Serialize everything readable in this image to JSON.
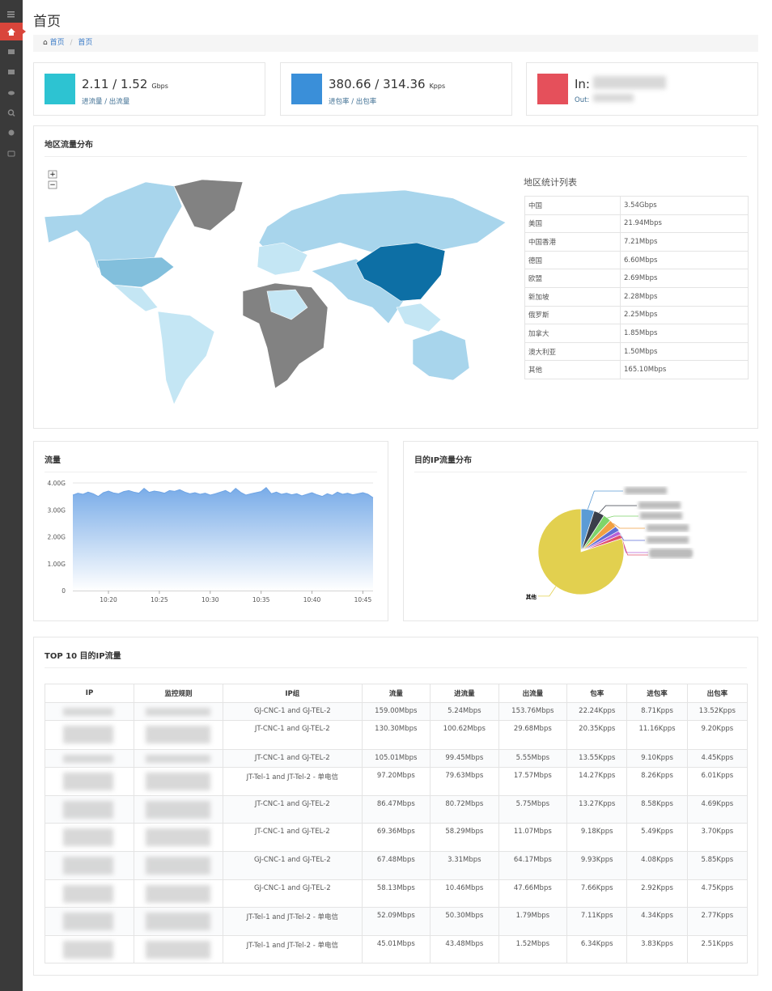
{
  "header": {
    "title": "首页",
    "breadcrumb": [
      "首页",
      "首页"
    ]
  },
  "stats": [
    {
      "value": "2.11 / 1.52",
      "unit": "Gbps",
      "label": "进流量 / 出流量"
    },
    {
      "value": "380.66 / 314.36",
      "unit": "Kpps",
      "label": "进包率 / 出包率"
    },
    {
      "value": "In:",
      "label": "Out:"
    }
  ],
  "region": {
    "title": "地区流量分布",
    "table_title": "地区统计列表",
    "rows": [
      [
        "中国",
        "3.54Gbps"
      ],
      [
        "美国",
        "21.94Mbps"
      ],
      [
        "中国香港",
        "7.21Mbps"
      ],
      [
        "德国",
        "6.60Mbps"
      ],
      [
        "欧盟",
        "2.69Mbps"
      ],
      [
        "新加坡",
        "2.28Mbps"
      ],
      [
        "俄罗斯",
        "2.25Mbps"
      ],
      [
        "加拿大",
        "1.85Mbps"
      ],
      [
        "澳大利亚",
        "1.50Mbps"
      ],
      [
        "其他",
        "165.10Mbps"
      ]
    ]
  },
  "chart_data": [
    {
      "type": "area",
      "title": "流量",
      "color": "#6fa4e4",
      "x": [
        616.5,
        617,
        617.5,
        618,
        618.5,
        619,
        619.5,
        620,
        620.5,
        621,
        621.5,
        622,
        622.5,
        623,
        623.5,
        624,
        624.5,
        625,
        625.5,
        626,
        626.5,
        627,
        627.5,
        628,
        628.5,
        629,
        629.5,
        630,
        630.5,
        631,
        631.5,
        632,
        632.5,
        633,
        633.5,
        634,
        634.5,
        635,
        635.5,
        636,
        636.5,
        637,
        637.5,
        638,
        638.5,
        639,
        639.5,
        640,
        640.5,
        641,
        641.5,
        642,
        642.5,
        643,
        643.5,
        644,
        644.5,
        645,
        645.5,
        646
      ],
      "values": [
        3.55,
        3.62,
        3.58,
        3.66,
        3.6,
        3.5,
        3.64,
        3.7,
        3.63,
        3.6,
        3.68,
        3.72,
        3.66,
        3.62,
        3.8,
        3.65,
        3.7,
        3.67,
        3.62,
        3.72,
        3.69,
        3.75,
        3.66,
        3.6,
        3.64,
        3.58,
        3.62,
        3.55,
        3.6,
        3.66,
        3.72,
        3.62,
        3.8,
        3.65,
        3.55,
        3.6,
        3.64,
        3.68,
        3.83,
        3.6,
        3.66,
        3.58,
        3.62,
        3.56,
        3.6,
        3.52,
        3.58,
        3.64,
        3.56,
        3.5,
        3.6,
        3.54,
        3.66,
        3.58,
        3.62,
        3.56,
        3.6,
        3.64,
        3.58,
        3.45
      ],
      "xlim": [
        616.5,
        646
      ],
      "xticks": [
        {
          "value": 620,
          "label": "10:20"
        },
        {
          "value": 625,
          "label": "10:25"
        },
        {
          "value": 630,
          "label": "10:30"
        },
        {
          "value": 635,
          "label": "10:35"
        },
        {
          "value": 640,
          "label": "10:40"
        },
        {
          "value": 645,
          "label": "10:45"
        }
      ],
      "ylim": [
        0,
        4.1
      ],
      "yticks": [
        0,
        {
          "value": 1,
          "label": "1.00G"
        },
        {
          "value": 2,
          "label": "2.00G"
        },
        {
          "value": 3,
          "label": "3.00G"
        },
        {
          "value": 4,
          "label": "4.00G"
        }
      ],
      "grid": true
    },
    {
      "type": "pie",
      "title": "目的IP流量分布",
      "categories": [
        null,
        null,
        null,
        null,
        null,
        null,
        null,
        "其他"
      ],
      "values": [
        5,
        4,
        3,
        3,
        2,
        1.5,
        1.5,
        80
      ],
      "colors": [
        "#5b9bd5",
        "#3a3f4a",
        "#7ed46a",
        "#f0a043",
        "#5f6fd6",
        "#b562d8",
        "#e0506b",
        "#e2d04f"
      ]
    }
  ],
  "top": {
    "title": "TOP 10 目的IP流量",
    "columns": [
      "IP",
      "监控规则",
      "IP组",
      "流量",
      "进流量",
      "出流量",
      "包率",
      "进包率",
      "出包率"
    ],
    "rows": [
      [
        null,
        null,
        "GJ-CNC-1 and GJ-TEL-2",
        "159.00Mbps",
        "5.24Mbps",
        "153.76Mbps",
        "22.24Kpps",
        "8.71Kpps",
        "13.52Kpps"
      ],
      [
        null,
        null,
        "JT-CNC-1 and GJ-TEL-2",
        "130.30Mbps",
        "100.62Mbps",
        "29.68Mbps",
        "20.35Kpps",
        "11.16Kpps",
        "9.20Kpps"
      ],
      [
        null,
        null,
        "JT-CNC-1 and GJ-TEL-2",
        "105.01Mbps",
        "99.45Mbps",
        "5.55Mbps",
        "13.55Kpps",
        "9.10Kpps",
        "4.45Kpps"
      ],
      [
        null,
        null,
        "JT-Tel-1 and JT-Tel-2 - 单电信",
        "97.20Mbps",
        "79.63Mbps",
        "17.57Mbps",
        "14.27Kpps",
        "8.26Kpps",
        "6.01Kpps"
      ],
      [
        null,
        null,
        "JT-CNC-1 and GJ-TEL-2",
        "86.47Mbps",
        "80.72Mbps",
        "5.75Mbps",
        "13.27Kpps",
        "8.58Kpps",
        "4.69Kpps"
      ],
      [
        null,
        null,
        "JT-CNC-1 and GJ-TEL-2",
        "69.36Mbps",
        "58.29Mbps",
        "11.07Mbps",
        "9.18Kpps",
        "5.49Kpps",
        "3.70Kpps"
      ],
      [
        null,
        null,
        "GJ-CNC-1 and GJ-TEL-2",
        "67.48Mbps",
        "3.31Mbps",
        "64.17Mbps",
        "9.93Kpps",
        "4.08Kpps",
        "5.85Kpps"
      ],
      [
        null,
        null,
        "GJ-CNC-1 and GJ-TEL-2",
        "58.13Mbps",
        "10.46Mbps",
        "47.66Mbps",
        "7.66Kpps",
        "2.92Kpps",
        "4.75Kpps"
      ],
      [
        null,
        null,
        "JT-Tel-1 and JT-Tel-2 - 单电信",
        "52.09Mbps",
        "50.30Mbps",
        "1.79Mbps",
        "7.11Kpps",
        "4.34Kpps",
        "2.77Kpps"
      ],
      [
        null,
        null,
        "JT-Tel-1 and JT-Tel-2 - 单电信",
        "45.01Mbps",
        "43.48Mbps",
        "1.52Mbps",
        "6.34Kpps",
        "3.83Kpps",
        "2.51Kpps"
      ]
    ]
  }
}
